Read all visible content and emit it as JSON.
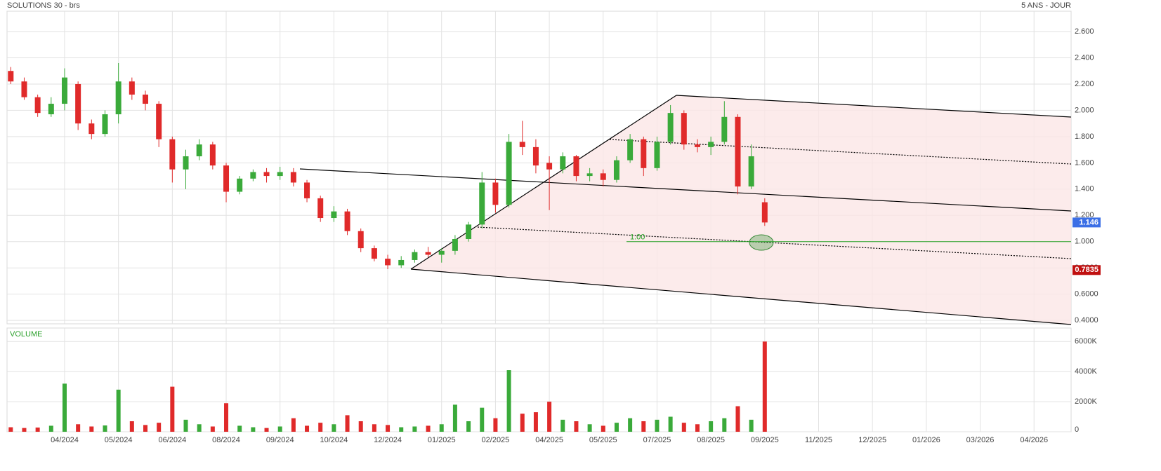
{
  "chart_data": {
    "type": "candlestick",
    "title": "SOLUTIONS 30 - brs",
    "subtitle": "5 ANS - JOUR",
    "categories": [
      null,
      null,
      null,
      null,
      "04/2024",
      null,
      null,
      null,
      "05/2024",
      null,
      null,
      null,
      "06/2024",
      null,
      null,
      null,
      "08/2024",
      null,
      null,
      null,
      "09/2024",
      null,
      null,
      null,
      "10/2024",
      null,
      null,
      null,
      "12/2024",
      null,
      null,
      null,
      "01/2025",
      null,
      null,
      null,
      "02/2025",
      null,
      null,
      null,
      "04/2025",
      null,
      null,
      null,
      "05/2025",
      null,
      null,
      null,
      "07/2025",
      null,
      null,
      null,
      "08/2025",
      null,
      null,
      null,
      "09/2025",
      null,
      null,
      null,
      "11/2025",
      null,
      null,
      null,
      "12/2025",
      null,
      null,
      null,
      "01/2026",
      null,
      null,
      null,
      "03/2026",
      null,
      null,
      null,
      "04/2026",
      null,
      null
    ],
    "open": [
      2.3,
      2.22,
      2.1,
      1.97,
      2.05,
      2.2,
      1.9,
      1.82,
      1.97,
      2.22,
      2.12,
      2.05,
      1.78,
      1.55,
      1.65,
      1.74,
      1.58,
      1.38,
      1.48,
      1.53,
      1.5,
      1.53,
      1.45,
      1.33,
      1.18,
      1.23,
      1.08,
      0.95,
      0.87,
      0.82,
      0.86,
      0.92,
      0.9,
      0.93,
      1.02,
      1.13,
      1.45,
      1.28,
      1.76,
      1.72,
      1.6,
      1.55,
      1.65,
      1.5,
      1.52,
      1.47,
      1.62,
      1.78,
      1.56,
      1.76,
      1.98,
      1.74,
      1.72,
      1.76,
      1.95,
      1.42,
      1.3,
      null,
      null,
      null,
      null,
      null,
      null,
      null,
      null,
      null,
      null,
      null,
      null,
      null,
      null,
      null,
      null,
      null,
      null,
      null,
      null,
      null,
      null
    ],
    "high": [
      2.33,
      2.25,
      2.12,
      2.1,
      2.32,
      2.22,
      1.93,
      2.0,
      2.36,
      2.25,
      2.15,
      2.07,
      1.8,
      1.7,
      1.78,
      1.76,
      1.6,
      1.5,
      1.55,
      1.56,
      1.57,
      1.56,
      1.47,
      1.35,
      1.27,
      1.25,
      1.1,
      0.97,
      0.9,
      0.89,
      0.94,
      0.96,
      0.95,
      1.05,
      1.15,
      1.53,
      1.48,
      1.82,
      1.92,
      1.78,
      1.65,
      1.68,
      1.66,
      1.56,
      1.55,
      1.65,
      1.82,
      1.8,
      1.8,
      2.04,
      2.0,
      1.78,
      1.8,
      2.07,
      1.97,
      1.74,
      1.33,
      null,
      null,
      null,
      null,
      null,
      null,
      null,
      null,
      null,
      null,
      null,
      null,
      null,
      null,
      null,
      null,
      null,
      null,
      null,
      null,
      null,
      null
    ],
    "low": [
      2.2,
      2.08,
      1.95,
      1.95,
      2.0,
      1.85,
      1.78,
      1.8,
      1.9,
      2.08,
      2.0,
      1.72,
      1.45,
      1.4,
      1.62,
      1.55,
      1.3,
      1.36,
      1.46,
      1.45,
      1.47,
      1.42,
      1.3,
      1.15,
      1.15,
      1.05,
      0.92,
      0.85,
      0.79,
      0.8,
      0.84,
      0.88,
      0.84,
      0.9,
      1.0,
      1.1,
      1.22,
      1.26,
      1.66,
      1.52,
      1.24,
      1.52,
      1.46,
      1.46,
      1.42,
      1.45,
      1.6,
      1.5,
      1.54,
      1.74,
      1.7,
      1.68,
      1.66,
      1.74,
      1.36,
      1.4,
      1.12,
      null,
      null,
      null,
      null,
      null,
      null,
      null,
      null,
      null,
      null,
      null,
      null,
      null,
      null,
      null,
      null,
      null,
      null,
      null,
      null,
      null,
      null
    ],
    "close": [
      2.22,
      2.1,
      1.98,
      2.05,
      2.25,
      1.9,
      1.82,
      1.97,
      2.22,
      2.12,
      2.05,
      1.78,
      1.55,
      1.65,
      1.74,
      1.58,
      1.38,
      1.48,
      1.53,
      1.5,
      1.53,
      1.45,
      1.33,
      1.18,
      1.23,
      1.08,
      0.95,
      0.87,
      0.82,
      0.86,
      0.92,
      0.9,
      0.93,
      1.02,
      1.13,
      1.45,
      1.28,
      1.76,
      1.72,
      1.58,
      1.55,
      1.65,
      1.5,
      1.52,
      1.47,
      1.62,
      1.78,
      1.56,
      1.76,
      1.98,
      1.74,
      1.72,
      1.76,
      1.95,
      1.42,
      1.65,
      1.146,
      null,
      null,
      null,
      null,
      null,
      null,
      null,
      null,
      null,
      null,
      null,
      null,
      null,
      null,
      null,
      null,
      null,
      null,
      null,
      null,
      null,
      null
    ],
    "up_color": "#3aaa3a",
    "down_color": "#e02a2a",
    "ylim": [
      0.374,
      2.755
    ],
    "yticks": [
      {
        "value": 0.4,
        "label": "0.4000"
      },
      {
        "value": 0.6,
        "label": "0.6000"
      },
      {
        "value": 0.8,
        "label": "0.8000"
      },
      {
        "value": 1,
        "label": "1.000"
      },
      {
        "value": 1.2,
        "label": "1.200"
      },
      {
        "value": 1.4,
        "label": "1.400"
      },
      {
        "value": 1.6,
        "label": "1.600"
      },
      {
        "value": 1.8,
        "label": "1.800"
      },
      {
        "value": 2,
        "label": "2.000"
      },
      {
        "value": 2.2,
        "label": "2.200"
      },
      {
        "value": 2.4,
        "label": "2.400"
      },
      {
        "value": 2.6,
        "label": "2.600"
      }
    ],
    "grid": true,
    "price_markers": [
      {
        "value": 1.146,
        "color": "#3b6fe6"
      },
      {
        "value": 0.7835,
        "color": "#c01010"
      }
    ],
    "level": {
      "value": 1,
      "label": "1.00",
      "color": "#22a022"
    },
    "volume": {
      "title": "VOLUME",
      "values": [
        300,
        250,
        280,
        400,
        3200,
        500,
        350,
        420,
        2800,
        700,
        450,
        600,
        3000,
        800,
        500,
        350,
        1900,
        400,
        300,
        250,
        350,
        900,
        400,
        600,
        500,
        1100,
        700,
        500,
        450,
        300,
        350,
        400,
        500,
        1800,
        700,
        1600,
        900,
        4100,
        1200,
        1300,
        2000,
        800,
        700,
        500,
        400,
        600,
        900,
        700,
        800,
        1000,
        600,
        500,
        700,
        900,
        1700,
        800,
        6000,
        null,
        null,
        null,
        null,
        null,
        null,
        null,
        null,
        null,
        null,
        null,
        null,
        null,
        null,
        null,
        null,
        null,
        null,
        null,
        null,
        null,
        null
      ],
      "ylim": [
        0,
        6900
      ],
      "yticks": [
        0,
        {
          "value": 2000,
          "label": "2000K"
        },
        {
          "value": 4000,
          "label": "4000K"
        },
        {
          "value": 6000,
          "label": "6000K"
        }
      ]
    }
  }
}
